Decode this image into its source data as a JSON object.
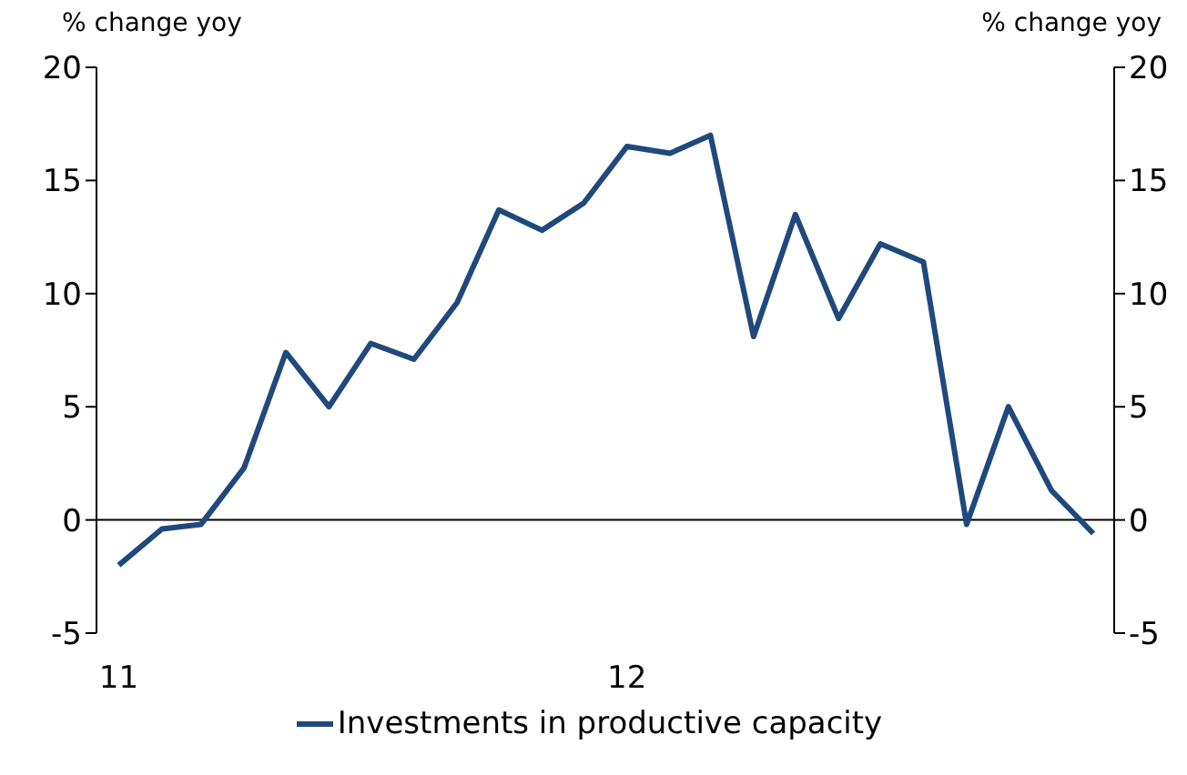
{
  "chart_data": {
    "type": "line",
    "ylabel": "% change yoy",
    "y2label": "% change yoy",
    "x": [
      "2011-01",
      "2011-02",
      "2011-03",
      "2011-04",
      "2011-05",
      "2011-06",
      "2011-07",
      "2011-08",
      "2011-09",
      "2011-10",
      "2011-11",
      "2011-12",
      "2012-01",
      "2012-02",
      "2012-03",
      "2012-04",
      "2012-05",
      "2012-06",
      "2012-07",
      "2012-08",
      "2012-09",
      "2012-10",
      "2012-11",
      "2012-12"
    ],
    "series": [
      {
        "name": "Investments in productive capacity",
        "color": "#1f497d",
        "values": [
          -2.0,
          -0.4,
          -0.2,
          2.3,
          7.4,
          5.0,
          7.8,
          7.1,
          9.6,
          13.7,
          12.8,
          14.0,
          16.5,
          16.2,
          17.0,
          8.1,
          13.5,
          8.9,
          12.2,
          11.4,
          -0.2,
          5.0,
          1.3,
          -0.6
        ]
      }
    ],
    "xlim": [
      "2010-12-16",
      "2012-12-16"
    ],
    "xticks": [
      {
        "value": "2011-01",
        "label": "11"
      },
      {
        "value": "2012-01",
        "label": "12"
      }
    ],
    "ylim": [
      -5,
      20
    ],
    "yticks": [
      -5,
      0,
      5,
      10,
      15,
      20
    ],
    "y2lim": [
      -5,
      20
    ],
    "y2ticks": [
      -5,
      0,
      5,
      10,
      15,
      20
    ],
    "ref_lines": [
      {
        "axis": "y",
        "value": 0,
        "color": "#000000"
      }
    ],
    "grid": false,
    "legend": "bottom",
    "marker": "none",
    "line_style": "solid"
  }
}
